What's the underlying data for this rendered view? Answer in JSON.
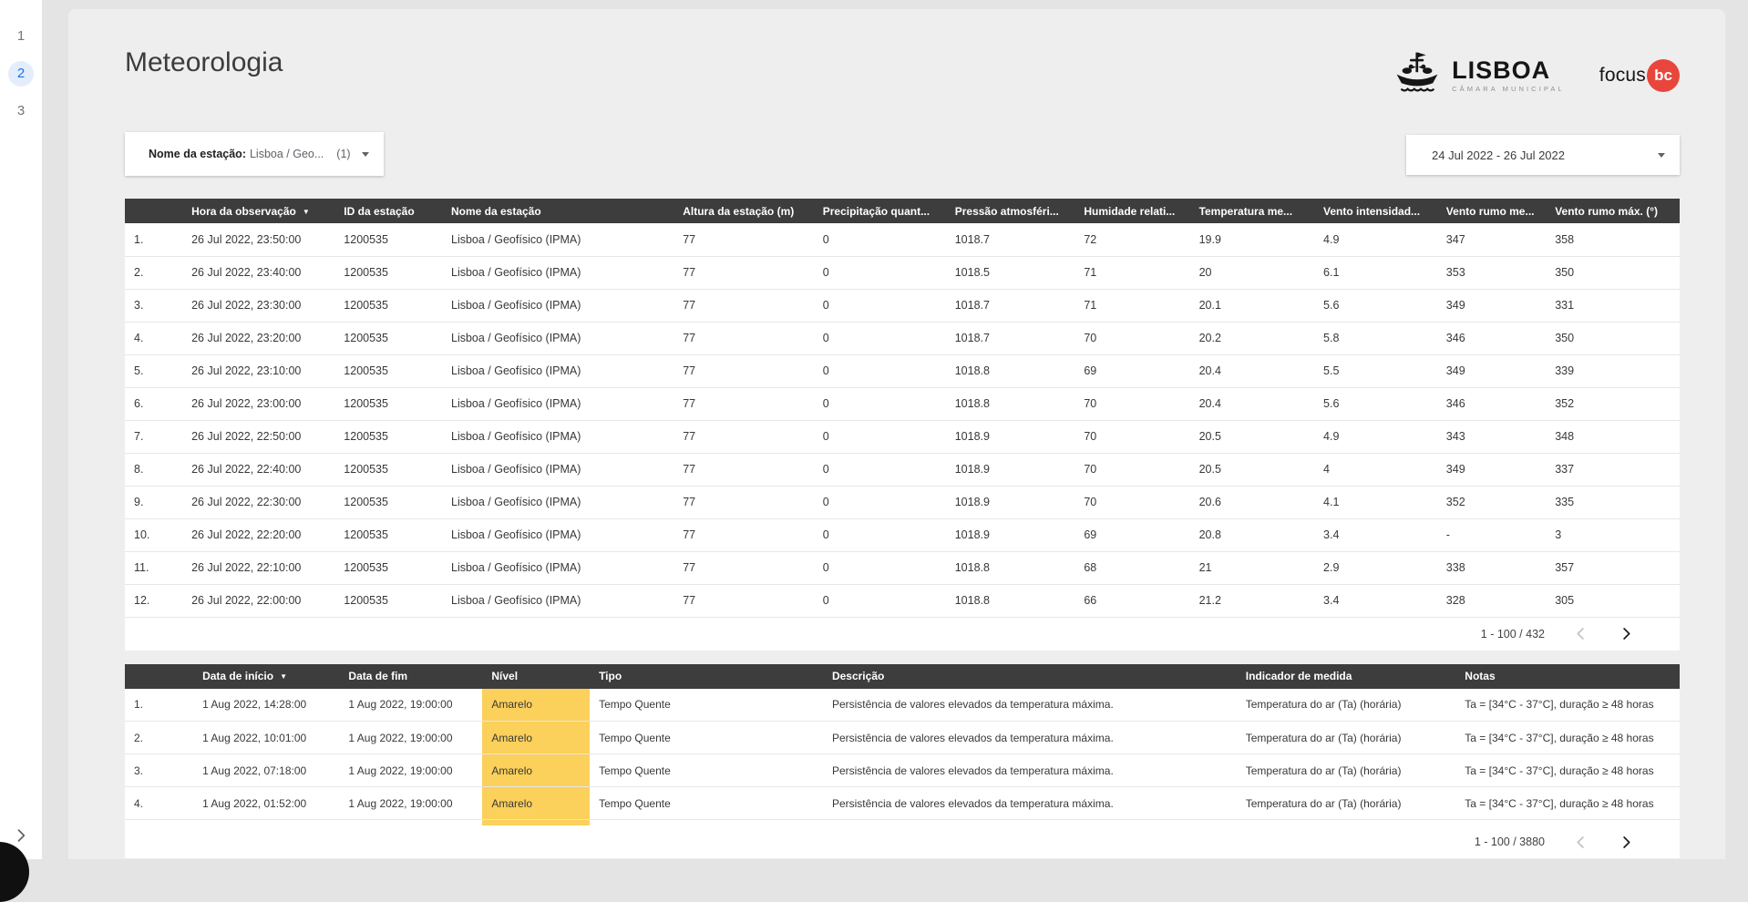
{
  "header": {
    "title": "Meteorologia"
  },
  "nav": {
    "pages": [
      "1",
      "2",
      "3"
    ],
    "active": "2"
  },
  "logos": {
    "lisboa": {
      "name": "LISBOA",
      "subtitle": "CÂMARA MUNICIPAL"
    },
    "focusbc": {
      "text": "focus",
      "badge": "bc"
    }
  },
  "filters": {
    "station": {
      "label": "Nome da estação:",
      "value": "Lisboa / Geo...",
      "count": "(1)"
    },
    "date_range": {
      "value": "24 Jul 2022 - 26 Jul 2022"
    }
  },
  "observations_table": {
    "columns": [
      "",
      "Hora da observação",
      "ID da estação",
      "Nome da estação",
      "Altura da estação (m)",
      "Precipitação quant...",
      "Pressão atmosféri...",
      "Humidade relati...",
      "Temperatura me...",
      "Vento intensidad...",
      "Vento rumo me...",
      "Vento rumo máx. (°)"
    ],
    "sort": {
      "column": 1,
      "icon": "▼"
    },
    "rows": [
      [
        "1.",
        "26 Jul 2022, 23:50:00",
        "1200535",
        "Lisboa / Geofísico (IPMA)",
        "77",
        "0",
        "1018.7",
        "72",
        "19.9",
        "4.9",
        "347",
        "358"
      ],
      [
        "2.",
        "26 Jul 2022, 23:40:00",
        "1200535",
        "Lisboa / Geofísico (IPMA)",
        "77",
        "0",
        "1018.5",
        "71",
        "20",
        "6.1",
        "353",
        "350"
      ],
      [
        "3.",
        "26 Jul 2022, 23:30:00",
        "1200535",
        "Lisboa / Geofísico (IPMA)",
        "77",
        "0",
        "1018.7",
        "71",
        "20.1",
        "5.6",
        "349",
        "331"
      ],
      [
        "4.",
        "26 Jul 2022, 23:20:00",
        "1200535",
        "Lisboa / Geofísico (IPMA)",
        "77",
        "0",
        "1018.7",
        "70",
        "20.2",
        "5.8",
        "346",
        "350"
      ],
      [
        "5.",
        "26 Jul 2022, 23:10:00",
        "1200535",
        "Lisboa / Geofísico (IPMA)",
        "77",
        "0",
        "1018.8",
        "69",
        "20.4",
        "5.5",
        "349",
        "339"
      ],
      [
        "6.",
        "26 Jul 2022, 23:00:00",
        "1200535",
        "Lisboa / Geofísico (IPMA)",
        "77",
        "0",
        "1018.8",
        "70",
        "20.4",
        "5.6",
        "346",
        "352"
      ],
      [
        "7.",
        "26 Jul 2022, 22:50:00",
        "1200535",
        "Lisboa / Geofísico (IPMA)",
        "77",
        "0",
        "1018.9",
        "70",
        "20.5",
        "4.9",
        "343",
        "348"
      ],
      [
        "8.",
        "26 Jul 2022, 22:40:00",
        "1200535",
        "Lisboa / Geofísico (IPMA)",
        "77",
        "0",
        "1018.9",
        "70",
        "20.5",
        "4",
        "349",
        "337"
      ],
      [
        "9.",
        "26 Jul 2022, 22:30:00",
        "1200535",
        "Lisboa / Geofísico (IPMA)",
        "77",
        "0",
        "1018.9",
        "70",
        "20.6",
        "4.1",
        "352",
        "335"
      ],
      [
        "10.",
        "26 Jul 2022, 22:20:00",
        "1200535",
        "Lisboa / Geofísico (IPMA)",
        "77",
        "0",
        "1018.9",
        "69",
        "20.8",
        "3.4",
        "-",
        "3"
      ],
      [
        "11.",
        "26 Jul 2022, 22:10:00",
        "1200535",
        "Lisboa / Geofísico (IPMA)",
        "77",
        "0",
        "1018.8",
        "68",
        "21",
        "2.9",
        "338",
        "357"
      ],
      [
        "12.",
        "26 Jul 2022, 22:00:00",
        "1200535",
        "Lisboa / Geofísico (IPMA)",
        "77",
        "0",
        "1018.8",
        "66",
        "21.2",
        "3.4",
        "328",
        "305"
      ]
    ],
    "pagination": "1 - 100 / 432"
  },
  "alerts_table": {
    "columns": [
      "",
      "Data de início",
      "Data de fim",
      "Nível",
      "Tipo",
      "Descrição",
      "Indicador de medida",
      "Notas"
    ],
    "sort": {
      "column": 1,
      "icon": "▼"
    },
    "highlight": {
      "column": 3,
      "color": "#fbd05b"
    },
    "rows": [
      [
        "1.",
        "1 Aug 2022, 14:28:00",
        "1 Aug 2022, 19:00:00",
        "Amarelo",
        "Tempo Quente",
        "Persistência de valores elevados da temperatura máxima.",
        "Temperatura do ar (Ta) (horária)",
        "Ta = [34°C - 37°C], duração ≥ 48 horas"
      ],
      [
        "2.",
        "1 Aug 2022, 10:01:00",
        "1 Aug 2022, 19:00:00",
        "Amarelo",
        "Tempo Quente",
        "Persistência de valores elevados da temperatura máxima.",
        "Temperatura do ar (Ta) (horária)",
        "Ta = [34°C - 37°C], duração ≥ 48 horas"
      ],
      [
        "3.",
        "1 Aug 2022, 07:18:00",
        "1 Aug 2022, 19:00:00",
        "Amarelo",
        "Tempo Quente",
        "Persistência de valores elevados da temperatura máxima.",
        "Temperatura do ar (Ta) (horária)",
        "Ta = [34°C - 37°C], duração ≥ 48 horas"
      ],
      [
        "4.",
        "1 Aug 2022, 01:52:00",
        "1 Aug 2022, 19:00:00",
        "Amarelo",
        "Tempo Quente",
        "Persistência de valores elevados da temperatura máxima.",
        "Temperatura do ar (Ta) (horária)",
        "Ta = [34°C - 37°C], duração ≥ 48 horas"
      ]
    ],
    "pagination": "1 - 100 / 3880"
  },
  "colors": {
    "accent_blue": "#1a73e8",
    "table_header_bg": "#3d3d3d",
    "level_yellow": "#fbd05b",
    "focusbc_red": "#e8463c"
  }
}
